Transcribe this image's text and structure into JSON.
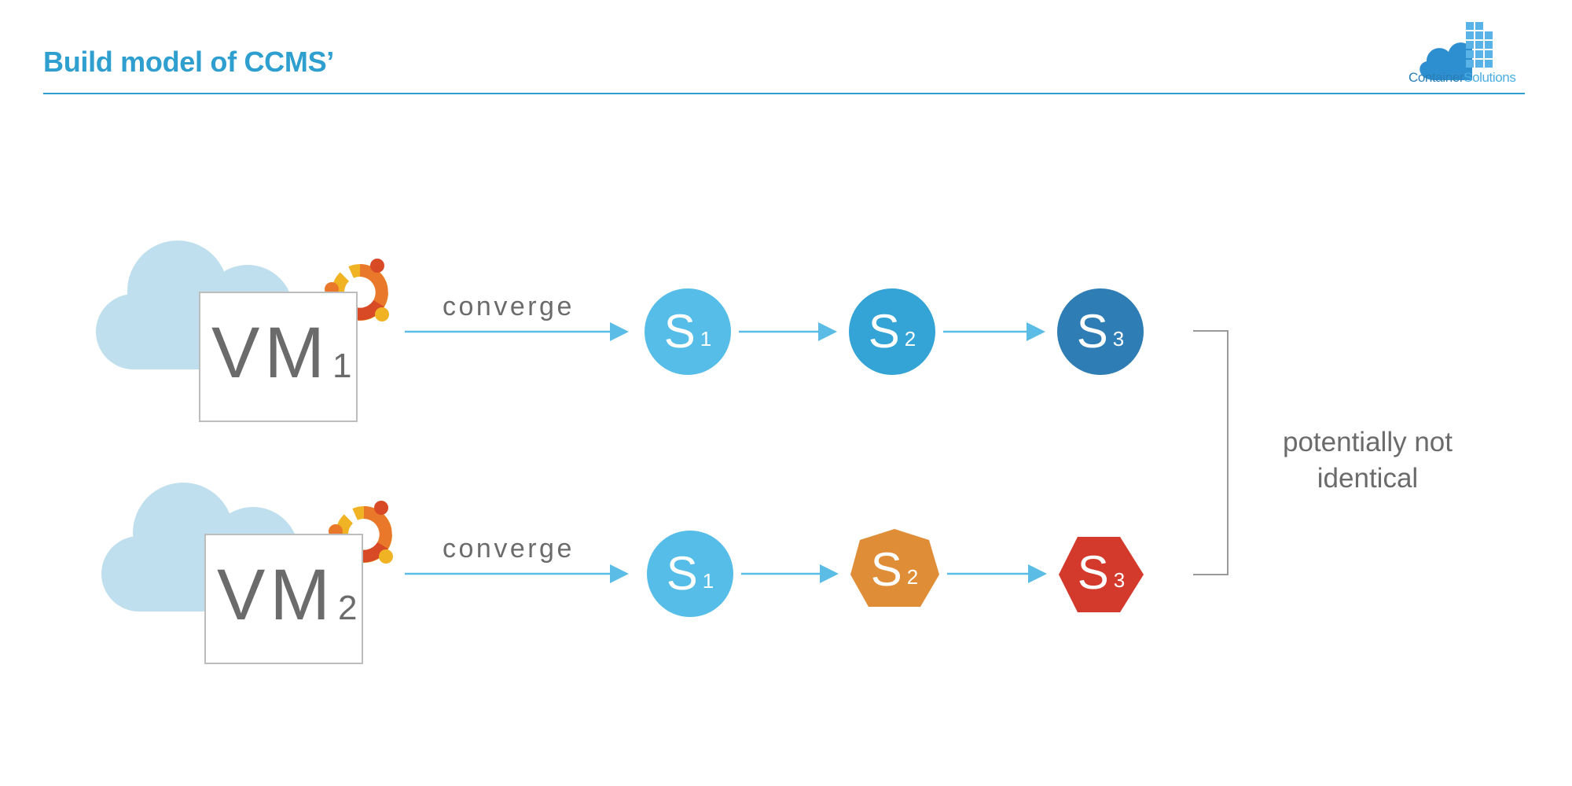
{
  "slide": {
    "title": "Build model of CCMS’"
  },
  "logo": {
    "name_part1": "Container",
    "name_part2": "Solutions",
    "icon": "cloud-grid-logo"
  },
  "rows": [
    {
      "vm": {
        "label": "VM",
        "index": "1",
        "icon": "ubuntu-logo"
      },
      "edge_label": "converge",
      "steps": [
        {
          "label": "S",
          "index": "1",
          "shape": "circle",
          "color": "#55bde8"
        },
        {
          "label": "S",
          "index": "2",
          "shape": "circle",
          "color": "#34a3d6"
        },
        {
          "label": "S",
          "index": "3",
          "shape": "circle",
          "color": "#2e7db5"
        }
      ]
    },
    {
      "vm": {
        "label": "VM",
        "index": "2",
        "icon": "ubuntu-logo"
      },
      "edge_label": "converge",
      "steps": [
        {
          "label": "S",
          "index": "1",
          "shape": "circle",
          "color": "#55bde8"
        },
        {
          "label": "S",
          "index": "2",
          "shape": "heptagon",
          "color": "#e08d38"
        },
        {
          "label": "S",
          "index": "3",
          "shape": "hexagon",
          "color": "#d33a2c"
        }
      ]
    }
  ],
  "note": {
    "line1": "potentially not",
    "line2": "identical"
  },
  "colors": {
    "accent": "#2e9fcf",
    "arrow": "#5bbde6",
    "cloud": "#bfdfee",
    "bracket": "#9a9a9a"
  }
}
